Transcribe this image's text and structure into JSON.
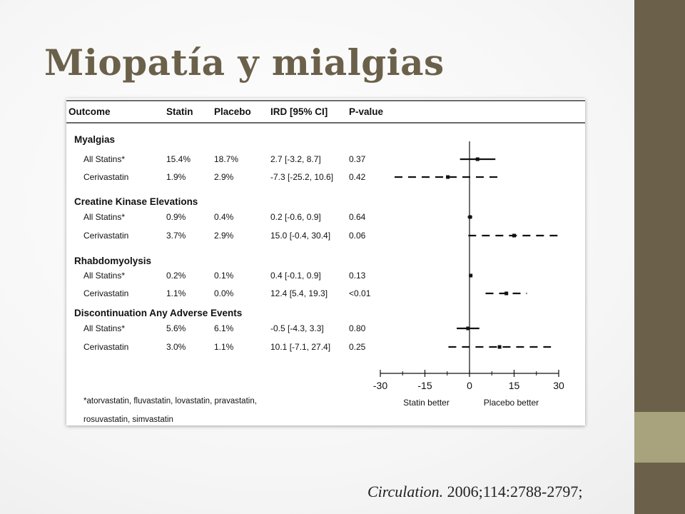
{
  "slide": {
    "title": "Miopatía y mialgias",
    "citation_journal": "Circulation.",
    "citation_ref": "2006;114:2788-2797;",
    "colors": {
      "title": "#6b604a",
      "band": "#6b604a",
      "band_accent": "#a8a27d"
    }
  },
  "chart_data": {
    "type": "table",
    "subtype": "forest-plot",
    "columns": [
      "Outcome",
      "Statin",
      "Placebo",
      "IRD [95% CI]",
      "P-value"
    ],
    "groups": [
      {
        "name": "Myalgias",
        "rows": [
          {
            "label": "All Statins*",
            "statin": "15.4%",
            "placebo": "18.7%",
            "ird_text": "2.7 [-3.2, 8.7]",
            "p": "0.37",
            "estimate": 2.7,
            "ci": [
              -3.2,
              8.7
            ]
          },
          {
            "label": "Cerivastatin",
            "statin": "1.9%",
            "placebo": "2.9%",
            "ird_text": "-7.3 [-25.2, 10.6]",
            "p": "0.42",
            "estimate": -7.3,
            "ci": [
              -25.2,
              10.6
            ]
          }
        ]
      },
      {
        "name": "Creatine Kinase Elevations",
        "rows": [
          {
            "label": "All Statins*",
            "statin": "0.9%",
            "placebo": "0.4%",
            "ird_text": "0.2 [-0.6, 0.9]",
            "p": "0.64",
            "estimate": 0.2,
            "ci": [
              -0.6,
              0.9
            ]
          },
          {
            "label": "Cerivastatin",
            "statin": "3.7%",
            "placebo": "2.9%",
            "ird_text": "15.0 [-0.4, 30.4]",
            "p": "0.06",
            "estimate": 15.0,
            "ci": [
              -0.4,
              30.4
            ]
          }
        ]
      },
      {
        "name": "Rhabdomyolysis",
        "rows": [
          {
            "label": "All Statins*",
            "statin": "0.2%",
            "placebo": "0.1%",
            "ird_text": "0.4 [-0.1, 0.9]",
            "p": "0.13",
            "estimate": 0.4,
            "ci": [
              -0.1,
              0.9
            ]
          },
          {
            "label": "Cerivastatin",
            "statin": "1.1%",
            "placebo": "0.0%",
            "ird_text": "12.4 [5.4, 19.3]",
            "p": "<0.01",
            "estimate": 12.4,
            "ci": [
              5.4,
              19.3
            ]
          }
        ]
      },
      {
        "name": "Discontinuation Any Adverse Events",
        "rows": [
          {
            "label": "All Statins*",
            "statin": "5.6%",
            "placebo": "6.1%",
            "ird_text": "-0.5 [-4.3, 3.3]",
            "p": "0.80",
            "estimate": -0.5,
            "ci": [
              -4.3,
              3.3
            ]
          },
          {
            "label": "Cerivastatin",
            "statin": "3.0%",
            "placebo": "1.1%",
            "ird_text": "10.1 [-7.1, 27.4]",
            "p": "0.25",
            "estimate": 10.1,
            "ci": [
              -7.1,
              27.4
            ]
          }
        ]
      }
    ],
    "xaxis": {
      "ticks": [
        -30,
        -15,
        0,
        15,
        30
      ],
      "range": [
        -30,
        30
      ],
      "left_label": "Statin better",
      "right_label": "Placebo better"
    },
    "footnote": [
      "*atorvastatin, fluvastatin, lovastatin, pravastatin,",
      "rosuvastatin, simvastatin"
    ],
    "line_style": {
      "solid_series": "All Statins*",
      "dashed_series": "Cerivastatin"
    }
  }
}
